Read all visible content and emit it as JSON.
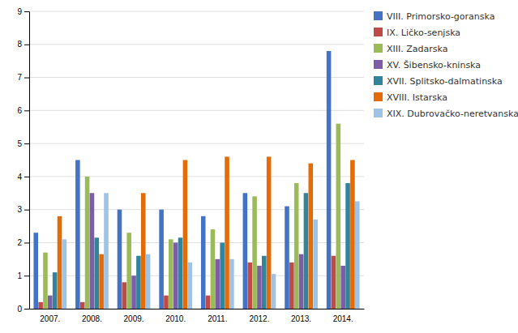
{
  "chart_data": {
    "type": "bar",
    "categories": [
      "2007.",
      "2008.",
      "2009.",
      "2010.",
      "2011.",
      "2012.",
      "2013.",
      "2014."
    ],
    "series": [
      {
        "name": "VIII. Primorsko-goranska",
        "color": "#4472C4",
        "values": [
          2.3,
          4.5,
          3.0,
          3.0,
          2.8,
          3.5,
          3.1,
          7.8
        ]
      },
      {
        "name": "IX. Ličko-senjska",
        "color": "#BE4B48",
        "values": [
          0.2,
          0.2,
          0.8,
          0.4,
          0.4,
          1.4,
          1.4,
          1.6
        ]
      },
      {
        "name": "XIII. Zadarska",
        "color": "#9BBB59",
        "values": [
          1.7,
          4.0,
          2.3,
          2.1,
          2.4,
          3.4,
          3.8,
          5.6
        ]
      },
      {
        "name": "XV. Šibensko-kninska",
        "color": "#7B5EA7",
        "values": [
          0.4,
          3.5,
          1.0,
          2.0,
          1.5,
          1.3,
          1.65,
          1.3
        ]
      },
      {
        "name": "XVII. Splitsko-dalmatinska",
        "color": "#31849B",
        "values": [
          1.1,
          2.15,
          1.6,
          2.15,
          2.0,
          1.6,
          3.5,
          3.8
        ]
      },
      {
        "name": "XVIII. Istarska",
        "color": "#E36C09",
        "values": [
          2.8,
          1.65,
          3.5,
          4.5,
          4.6,
          4.6,
          4.4,
          4.5
        ]
      },
      {
        "name": "XIX. Dubrovačko-neretvanska",
        "color": "#9DC3E6",
        "values": [
          2.1,
          3.5,
          1.65,
          1.4,
          1.5,
          1.05,
          2.7,
          3.25
        ]
      }
    ],
    "ylim": [
      0,
      9
    ],
    "yticks": [
      0,
      1,
      2,
      3,
      4,
      5,
      6,
      7,
      8,
      9
    ],
    "grid": true,
    "legend": "right"
  }
}
